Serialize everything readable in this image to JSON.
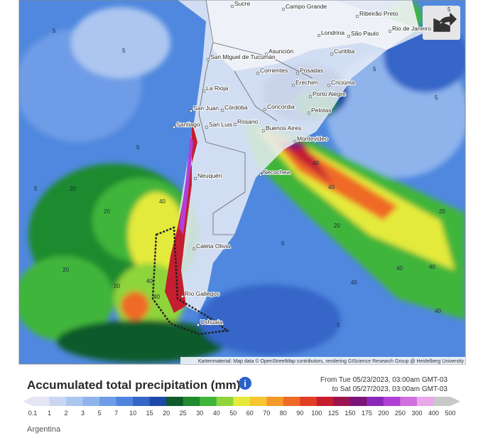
{
  "map": {
    "cities": [
      "Sucre",
      "Campo Grande",
      "Ribeirão Preto",
      "Rio de Janeiro",
      "Londrina",
      "São Paulo",
      "Curitiba",
      "Asunción",
      "San Miguel de Tucumán",
      "Corrientes",
      "Posadas",
      "Erechim",
      "Criciúma",
      "La Rioja",
      "Porto Alegre",
      "San Juan",
      "Córdoba",
      "Concordia",
      "Pelotas",
      "Santiago",
      "San Luis",
      "Rosario",
      "Buenos Aires",
      "Montevideo",
      "Neuquén",
      "Necochea",
      "Caleta Olivia",
      "Río Gallegos",
      "Ushuaia"
    ],
    "contour_labels": [
      "5",
      "5",
      "5",
      "5",
      "5",
      "5",
      "5",
      "20",
      "20",
      "40",
      "40",
      "40",
      "20",
      "40",
      "20",
      "40",
      "40",
      "40",
      "40",
      "20",
      "40",
      "20",
      "5",
      "5"
    ],
    "attribution": "Kartenmaterial: Map data © OpenStreetMap contributors, rendering GIScience Research Group @ Heidelberg University"
  },
  "footer": {
    "title": "Accumulated total precipitation (mm)",
    "info": "i",
    "period_from": "From Tue 05/23/2023, 03:00am GMT-03",
    "period_to": "to Sat 05/27/2023, 03:00am GMT-03",
    "legend": {
      "labels": [
        0.1,
        1,
        2,
        3,
        5,
        7,
        10,
        15,
        20,
        25,
        30,
        40,
        50,
        60,
        70,
        80,
        90,
        100,
        125,
        150,
        175,
        200,
        250,
        300,
        400,
        500
      ],
      "colors": [
        "#e4e6f4",
        "#c9d6f2",
        "#acc6f0",
        "#8fb4ec",
        "#6e9ce6",
        "#4f84de",
        "#3466c8",
        "#1e48a8",
        "#0e5a2a",
        "#1f8a2e",
        "#3fb53a",
        "#8ed43a",
        "#e4ea3a",
        "#f6c632",
        "#f49a2a",
        "#ee6a26",
        "#e23e26",
        "#c41e30",
        "#9c1450",
        "#7a1478",
        "#8c28b8",
        "#b040d8",
        "#d070e0",
        "#e8a8ea",
        "#c8c8c8"
      ]
    },
    "region": "Argentina"
  }
}
